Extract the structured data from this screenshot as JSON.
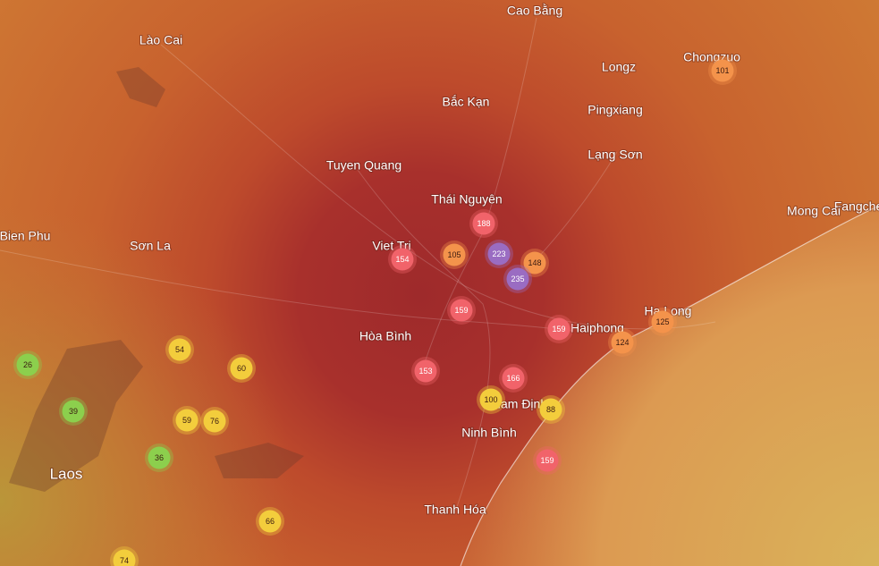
{
  "places": [
    "Cao Bằng",
    "Lào Cai",
    "Longz",
    "Chongzuo",
    "Bắc Kạn",
    "Pingxiang",
    "Lạng Sơn",
    "Tuyen Quang",
    "Thái Nguyên",
    "Fangche",
    "Mong Cai",
    "Bien Phu",
    "Sơn La",
    "Viet Tri",
    "Hòa Bình",
    "Haiphong",
    "Ha Long",
    "Nam Định",
    "Ninh Bình",
    "Laos",
    "Thanh Hóa"
  ],
  "stations": [
    188,
    105,
    223,
    148,
    235,
    154,
    159,
    159,
    153,
    166,
    100,
    88,
    124,
    125,
    101,
    159,
    54,
    60,
    26,
    39,
    59,
    76,
    36,
    66,
    74
  ]
}
